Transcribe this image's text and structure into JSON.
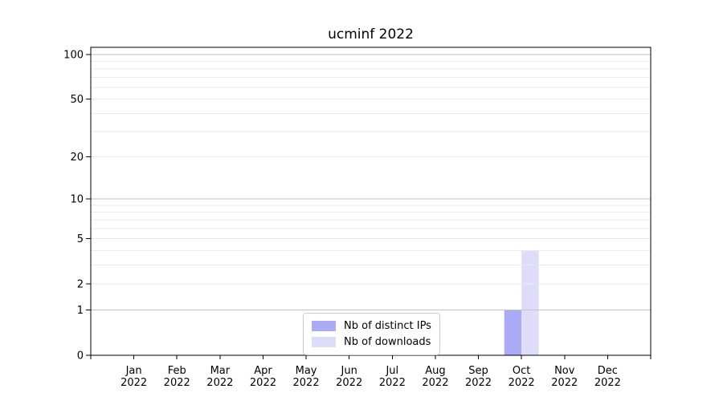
{
  "chart_data": {
    "type": "bar",
    "title": "ucminf 2022",
    "categories": [
      "Jan",
      "Feb",
      "Mar",
      "Apr",
      "May",
      "Jun",
      "Jul",
      "Aug",
      "Sep",
      "Oct",
      "Nov",
      "Dec"
    ],
    "x_tick_second_line": "2022",
    "series": [
      {
        "name": "Nb of distinct IPs",
        "color": "#aaaaf5",
        "values": [
          0,
          0,
          0,
          0,
          0,
          0,
          0,
          0,
          0,
          1,
          0,
          0
        ]
      },
      {
        "name": "Nb of downloads",
        "color": "#ddddf9",
        "values": [
          0,
          0,
          0,
          0,
          0,
          0,
          0,
          0,
          0,
          4,
          0,
          0
        ]
      }
    ],
    "xlabel": "",
    "ylabel": "",
    "y_scale": "log10(1+y)",
    "ylim": [
      0,
      112
    ],
    "y_ticks": [
      0,
      1,
      2,
      5,
      10,
      20,
      50,
      100
    ],
    "y_major_gridlines": [
      1,
      10,
      100
    ],
    "y_minor_gridlines": [
      2,
      3,
      4,
      5,
      6,
      7,
      8,
      9,
      20,
      30,
      40,
      50,
      60,
      70,
      80,
      90
    ],
    "grid": true,
    "legend_position": "lower center"
  },
  "colors": {
    "axis": "#000000",
    "text": "#000000",
    "grid_major": "#c3c3c3",
    "grid_minor": "#eaeaea",
    "legend_border": "#cccccc"
  }
}
